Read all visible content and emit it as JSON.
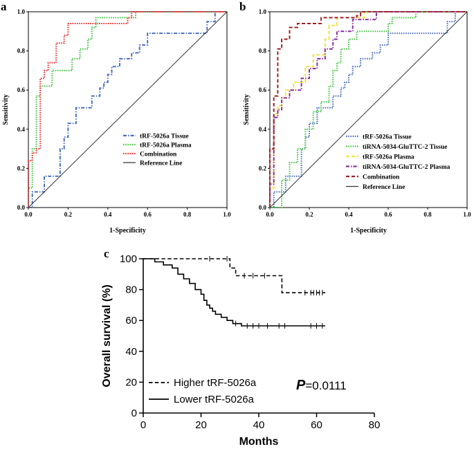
{
  "chart_data": [
    {
      "panel": "a",
      "type": "line",
      "subtype": "roc",
      "xlabel": "1-Specificity",
      "ylabel": "Sensitivity",
      "xlim": [
        0,
        1
      ],
      "ylim": [
        0,
        1
      ],
      "xticks": [
        "0.0",
        "0.2",
        "0.4",
        "0.6",
        "0.8",
        "1.0"
      ],
      "yticks": [
        "0.0",
        "0.2",
        "0.4",
        "0.6",
        "0.8",
        "1.0"
      ],
      "legend_position": "bottom-right",
      "series": [
        {
          "name": "tRF-5026a Tissue",
          "color": "#4a6fc0",
          "dash": "dashdot",
          "x": [
            0,
            0.02,
            0.02,
            0.08,
            0.08,
            0.16,
            0.16,
            0.18,
            0.18,
            0.2,
            0.2,
            0.24,
            0.24,
            0.32,
            0.32,
            0.36,
            0.36,
            0.38,
            0.38,
            0.4,
            0.4,
            0.42,
            0.42,
            0.46,
            0.46,
            0.52,
            0.52,
            0.56,
            0.56,
            0.6,
            0.6,
            0.9,
            0.9,
            0.94,
            0.94,
            1.0
          ],
          "y": [
            0,
            0,
            0.08,
            0.08,
            0.16,
            0.16,
            0.3,
            0.3,
            0.36,
            0.36,
            0.43,
            0.43,
            0.51,
            0.51,
            0.57,
            0.57,
            0.61,
            0.61,
            0.64,
            0.64,
            0.68,
            0.68,
            0.72,
            0.72,
            0.76,
            0.76,
            0.79,
            0.79,
            0.83,
            0.83,
            0.89,
            0.89,
            0.95,
            0.95,
            1.0,
            1.0
          ]
        },
        {
          "name": "tRF-5026a Plasma",
          "color": "#44c444",
          "dash": "dot",
          "x": [
            0,
            0,
            0.02,
            0.02,
            0.04,
            0.04,
            0.06,
            0.06,
            0.12,
            0.12,
            0.22,
            0.22,
            0.26,
            0.26,
            0.3,
            0.3,
            0.32,
            0.32,
            0.34,
            0.34,
            0.54,
            0.54,
            1.0
          ],
          "y": [
            0,
            0.1,
            0.1,
            0.3,
            0.3,
            0.57,
            0.57,
            0.62,
            0.62,
            0.7,
            0.7,
            0.76,
            0.76,
            0.81,
            0.81,
            0.86,
            0.86,
            0.92,
            0.92,
            0.97,
            0.97,
            1.0,
            1.0
          ]
        },
        {
          "name": "Combination",
          "color": "#e83030",
          "dash": "dot",
          "x": [
            0,
            0,
            0.02,
            0.02,
            0.04,
            0.04,
            0.06,
            0.06,
            0.08,
            0.08,
            0.1,
            0.1,
            0.14,
            0.14,
            0.18,
            0.18,
            0.2,
            0.2,
            0.5,
            0.5,
            0.52,
            0.52,
            1.0
          ],
          "y": [
            0,
            0.24,
            0.24,
            0.28,
            0.28,
            0.3,
            0.3,
            0.66,
            0.66,
            0.7,
            0.7,
            0.74,
            0.74,
            0.84,
            0.84,
            0.88,
            0.88,
            0.94,
            0.94,
            0.97,
            0.97,
            1.0,
            1.0
          ]
        },
        {
          "name": "Reference Line",
          "color": "#333333",
          "dash": "solid",
          "x": [
            0,
            1
          ],
          "y": [
            0,
            1
          ]
        }
      ]
    },
    {
      "panel": "b",
      "type": "line",
      "subtype": "roc",
      "xlabel": "1-Specificity",
      "ylabel": "Sensitivity",
      "xlim": [
        0,
        1
      ],
      "ylim": [
        0,
        1
      ],
      "xticks": [
        "0.0",
        "0.2",
        "0.4",
        "0.6",
        "0.8",
        "1.0"
      ],
      "yticks": [
        "0.0",
        "0.2",
        "0.4",
        "0.6",
        "0.8",
        "1.0"
      ],
      "legend_position": "bottom-right",
      "series": [
        {
          "name": "tRF-5026a Tissue",
          "color": "#4a6fc0",
          "dash": "dot",
          "x": [
            0,
            0.02,
            0.02,
            0.08,
            0.08,
            0.16,
            0.16,
            0.18,
            0.18,
            0.2,
            0.2,
            0.24,
            0.24,
            0.32,
            0.32,
            0.36,
            0.36,
            0.38,
            0.38,
            0.4,
            0.4,
            0.42,
            0.42,
            0.46,
            0.46,
            0.52,
            0.52,
            0.56,
            0.56,
            0.6,
            0.6,
            0.9,
            0.9,
            0.94,
            0.94,
            1.0
          ],
          "y": [
            0,
            0,
            0.08,
            0.08,
            0.16,
            0.16,
            0.3,
            0.3,
            0.36,
            0.36,
            0.43,
            0.43,
            0.51,
            0.51,
            0.57,
            0.57,
            0.61,
            0.61,
            0.64,
            0.64,
            0.68,
            0.68,
            0.72,
            0.72,
            0.76,
            0.76,
            0.79,
            0.79,
            0.83,
            0.83,
            0.89,
            0.89,
            0.95,
            0.95,
            1.0,
            1.0
          ]
        },
        {
          "name": "tiRNA-5034-GluTTC-2 Tissue",
          "color": "#44c444",
          "dash": "dot",
          "x": [
            0,
            0.06,
            0.06,
            0.1,
            0.1,
            0.14,
            0.14,
            0.18,
            0.18,
            0.22,
            0.22,
            0.26,
            0.26,
            0.3,
            0.3,
            0.32,
            0.32,
            0.34,
            0.34,
            0.36,
            0.36,
            0.4,
            0.4,
            0.44,
            0.44,
            0.6,
            0.6,
            0.62,
            0.62,
            0.74,
            0.74,
            1.0
          ],
          "y": [
            0,
            0,
            0.14,
            0.14,
            0.23,
            0.23,
            0.3,
            0.3,
            0.4,
            0.4,
            0.49,
            0.49,
            0.54,
            0.54,
            0.62,
            0.62,
            0.7,
            0.7,
            0.74,
            0.74,
            0.81,
            0.81,
            0.86,
            0.86,
            0.9,
            0.9,
            0.94,
            0.94,
            0.97,
            0.97,
            1.0,
            1.0
          ]
        },
        {
          "name": "tRF-5026a Plasma",
          "color": "#f2e23a",
          "dash": "dashed",
          "x": [
            0,
            0,
            0.02,
            0.02,
            0.04,
            0.04,
            0.06,
            0.06,
            0.08,
            0.08,
            0.12,
            0.12,
            0.18,
            0.18,
            0.22,
            0.22,
            0.28,
            0.28,
            0.3,
            0.3,
            0.34,
            0.34,
            0.48,
            0.48,
            1.0
          ],
          "y": [
            0,
            0.1,
            0.1,
            0.48,
            0.48,
            0.52,
            0.52,
            0.56,
            0.56,
            0.6,
            0.6,
            0.64,
            0.64,
            0.72,
            0.72,
            0.78,
            0.78,
            0.86,
            0.86,
            0.93,
            0.93,
            0.97,
            0.97,
            1.0,
            1.0
          ]
        },
        {
          "name": "tiRNA-5034-GluTTC-2 Plasma",
          "color": "#8a2c9c",
          "dash": "dashdot",
          "x": [
            0,
            0,
            0.02,
            0.02,
            0.04,
            0.04,
            0.06,
            0.06,
            0.1,
            0.1,
            0.16,
            0.16,
            0.2,
            0.2,
            0.24,
            0.24,
            0.28,
            0.28,
            0.32,
            0.32,
            0.34,
            0.34,
            0.42,
            0.42,
            0.54,
            0.54,
            1.0
          ],
          "y": [
            0,
            0.12,
            0.12,
            0.46,
            0.46,
            0.5,
            0.5,
            0.56,
            0.56,
            0.6,
            0.6,
            0.66,
            0.66,
            0.71,
            0.71,
            0.76,
            0.76,
            0.81,
            0.81,
            0.86,
            0.86,
            0.9,
            0.9,
            0.96,
            0.96,
            1.0,
            1.0
          ]
        },
        {
          "name": "Combination",
          "color": "#a02020",
          "dash": "dashed",
          "x": [
            0,
            0,
            0.02,
            0.02,
            0.04,
            0.04,
            0.06,
            0.06,
            0.1,
            0.1,
            0.14,
            0.14,
            0.26,
            0.26,
            0.44,
            0.44,
            0.46,
            0.46,
            1.0
          ],
          "y": [
            0,
            0.3,
            0.3,
            0.57,
            0.57,
            0.81,
            0.81,
            0.86,
            0.86,
            0.92,
            0.92,
            0.94,
            0.94,
            0.97,
            0.97,
            0.98,
            0.98,
            1.0,
            1.0
          ]
        },
        {
          "name": "Reference Line",
          "color": "#333333",
          "dash": "solid",
          "x": [
            0,
            1
          ],
          "y": [
            0,
            1
          ]
        }
      ]
    },
    {
      "panel": "c",
      "type": "line",
      "subtype": "kaplan-meier",
      "xlabel": "Months",
      "ylabel": "Overall survival (%)",
      "xlim": [
        0,
        80
      ],
      "ylim": [
        0,
        100
      ],
      "xticks": [
        "0",
        "20",
        "40",
        "60",
        "80"
      ],
      "yticks": [
        "0",
        "20",
        "40",
        "60",
        "80",
        "100"
      ],
      "legend_position": "bottom-left",
      "annotation": {
        "prefix": "P",
        "text": "=0.0111"
      },
      "series": [
        {
          "name": "Higher tRF-5026a",
          "color": "#000000",
          "dash": "dashed",
          "x": [
            0,
            30,
            30,
            32,
            32,
            33,
            33,
            48,
            48,
            63
          ],
          "y": [
            100,
            100,
            94,
            94,
            89,
            89,
            89,
            89,
            78,
            78
          ],
          "censor_x": [
            23,
            29,
            35,
            38,
            42,
            56,
            58,
            59,
            60,
            61,
            62
          ],
          "censor_y": [
            100,
            100,
            89,
            89,
            89,
            78,
            78,
            78,
            78,
            78,
            78
          ]
        },
        {
          "name": "Lower tRF-5026a",
          "color": "#000000",
          "dash": "solid",
          "x": [
            0,
            4,
            4,
            7,
            7,
            10,
            10,
            12,
            12,
            14,
            14,
            16,
            16,
            18,
            18,
            20,
            20,
            21,
            21,
            22,
            22,
            23,
            23,
            24,
            24,
            25,
            25,
            27,
            27,
            29,
            29,
            31,
            31,
            34,
            34,
            63
          ],
          "y": [
            100,
            100,
            98,
            98,
            96,
            96,
            94,
            94,
            90,
            90,
            87,
            87,
            84,
            84,
            80,
            80,
            77,
            77,
            73,
            73,
            70,
            70,
            68,
            68,
            66,
            66,
            64,
            64,
            62,
            62,
            60,
            60,
            58,
            58,
            56.5,
            56.5
          ],
          "censor_x": [
            32,
            36,
            38,
            40,
            43,
            47,
            49,
            58,
            60,
            62
          ],
          "censor_y": [
            58,
            56.5,
            56.5,
            56.5,
            56.5,
            56.5,
            56.5,
            56.5,
            56.5,
            56.5
          ]
        }
      ]
    }
  ]
}
